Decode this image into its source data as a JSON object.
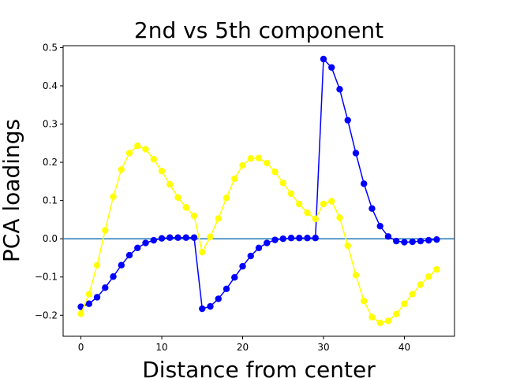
{
  "chart_data": {
    "type": "line",
    "title": "2nd vs 5th component",
    "xlabel": "Distance from center",
    "ylabel": "PCA loadings",
    "xlim": [
      -2.2,
      46.2
    ],
    "ylim": [
      -0.255,
      0.505
    ],
    "x_ticks": [
      0,
      10,
      20,
      30,
      40
    ],
    "y_ticks": [
      -0.2,
      -0.1,
      0.0,
      0.1,
      0.2,
      0.3,
      0.4,
      0.5
    ],
    "x_tick_labels": [
      "0",
      "10",
      "20",
      "30",
      "40"
    ],
    "y_tick_labels": [
      "−0.2",
      "−0.1",
      "0.0",
      "0.1",
      "0.2",
      "0.3",
      "0.4",
      "0.5"
    ],
    "grid": false,
    "legend": false,
    "reference_lines": [
      {
        "type": "horizontal",
        "y": 0.0,
        "color": "#1f77b4"
      }
    ],
    "x": [
      0,
      1,
      2,
      3,
      4,
      5,
      6,
      7,
      8,
      9,
      10,
      11,
      12,
      13,
      14,
      15,
      16,
      17,
      18,
      19,
      20,
      21,
      22,
      23,
      24,
      25,
      26,
      27,
      28,
      29,
      30,
      31,
      32,
      33,
      34,
      35,
      36,
      37,
      38,
      39,
      40,
      41,
      42,
      43,
      44
    ],
    "series": [
      {
        "color": "#0000ff",
        "marker": "circle",
        "values": [
          -0.178,
          -0.17,
          -0.153,
          -0.128,
          -0.099,
          -0.069,
          -0.043,
          -0.024,
          -0.011,
          -0.004,
          0.001,
          0.003,
          0.003,
          0.003,
          0.003,
          -0.183,
          -0.177,
          -0.157,
          -0.131,
          -0.101,
          -0.072,
          -0.045,
          -0.024,
          -0.011,
          -0.003,
          0.0,
          0.002,
          0.002,
          0.002,
          0.002,
          0.47,
          0.448,
          0.391,
          0.31,
          0.224,
          0.144,
          0.079,
          0.033,
          0.006,
          -0.006,
          -0.009,
          -0.008,
          -0.006,
          -0.004,
          -0.002
        ]
      },
      {
        "color": "#ffff00",
        "marker": "circle",
        "values": [
          -0.196,
          -0.145,
          -0.069,
          0.022,
          0.11,
          0.181,
          0.224,
          0.243,
          0.234,
          0.208,
          0.177,
          0.142,
          0.108,
          0.082,
          0.06,
          -0.035,
          0.005,
          0.053,
          0.107,
          0.157,
          0.192,
          0.21,
          0.211,
          0.198,
          0.175,
          0.146,
          0.118,
          0.091,
          0.068,
          0.052,
          0.091,
          0.098,
          0.055,
          -0.018,
          -0.095,
          -0.163,
          -0.205,
          -0.22,
          -0.215,
          -0.197,
          -0.17,
          -0.145,
          -0.12,
          -0.099,
          -0.08
        ]
      }
    ]
  }
}
